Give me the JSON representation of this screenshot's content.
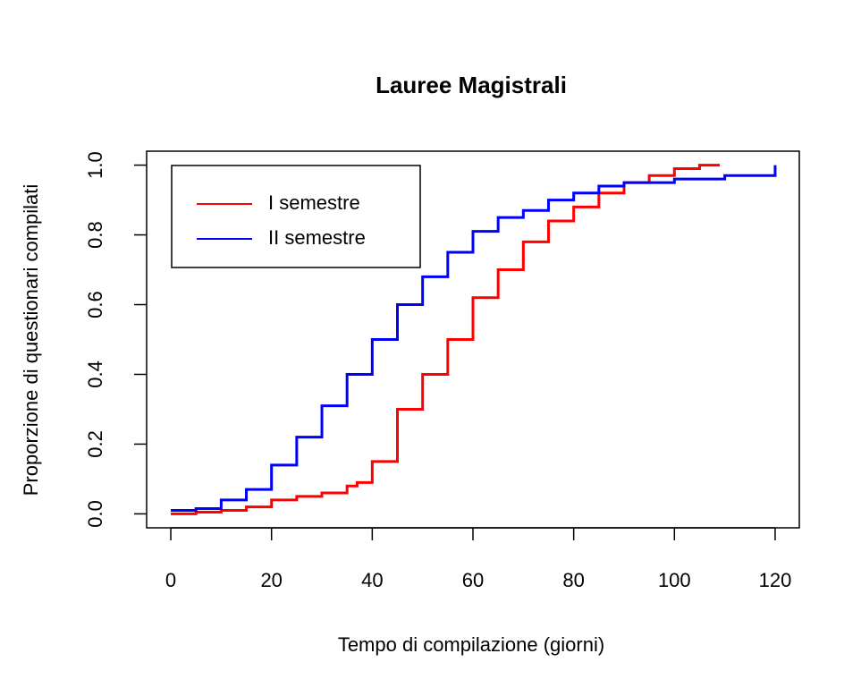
{
  "chart_data": {
    "type": "step",
    "title": "Lauree Magistrali",
    "xlabel": "Tempo di compilazione (giorni)",
    "ylabel": "Proporzione di questionari compilati",
    "xlim": [
      -4.8,
      124.8
    ],
    "xticks": [
      0,
      20,
      40,
      60,
      80,
      100,
      120
    ],
    "ylim": [
      -0.04,
      1.04
    ],
    "yticks": [
      {
        "value": 0,
        "label": "0.0"
      },
      {
        "value": 0.2,
        "label": "0.2"
      },
      {
        "value": 0.4,
        "label": "0.4"
      },
      {
        "value": 0.6,
        "label": "0.6"
      },
      {
        "value": 0.8,
        "label": "0.8"
      },
      {
        "value": 1,
        "label": "1.0"
      }
    ],
    "legend": "topleft",
    "series": [
      {
        "name": "I semestre",
        "color": "#ff0000",
        "x": [
          0,
          5,
          10,
          15,
          20,
          25,
          30,
          35,
          37,
          40,
          45,
          50,
          55,
          60,
          65,
          70,
          75,
          80,
          85,
          90,
          95,
          100,
          105,
          109
        ],
        "values": [
          0.0,
          0.005,
          0.01,
          0.02,
          0.04,
          0.05,
          0.06,
          0.08,
          0.09,
          0.15,
          0.3,
          0.4,
          0.5,
          0.62,
          0.7,
          0.78,
          0.84,
          0.88,
          0.92,
          0.95,
          0.97,
          0.99,
          1.0,
          1.0
        ]
      },
      {
        "name": "II semestre",
        "color": "#0000ff",
        "x": [
          0,
          5,
          10,
          15,
          20,
          25,
          30,
          35,
          40,
          45,
          50,
          55,
          60,
          65,
          70,
          75,
          80,
          85,
          90,
          100,
          110,
          120
        ],
        "values": [
          0.01,
          0.015,
          0.04,
          0.07,
          0.14,
          0.22,
          0.31,
          0.4,
          0.5,
          0.6,
          0.68,
          0.75,
          0.81,
          0.85,
          0.87,
          0.9,
          0.92,
          0.94,
          0.95,
          0.96,
          0.97,
          1.0
        ]
      }
    ]
  }
}
